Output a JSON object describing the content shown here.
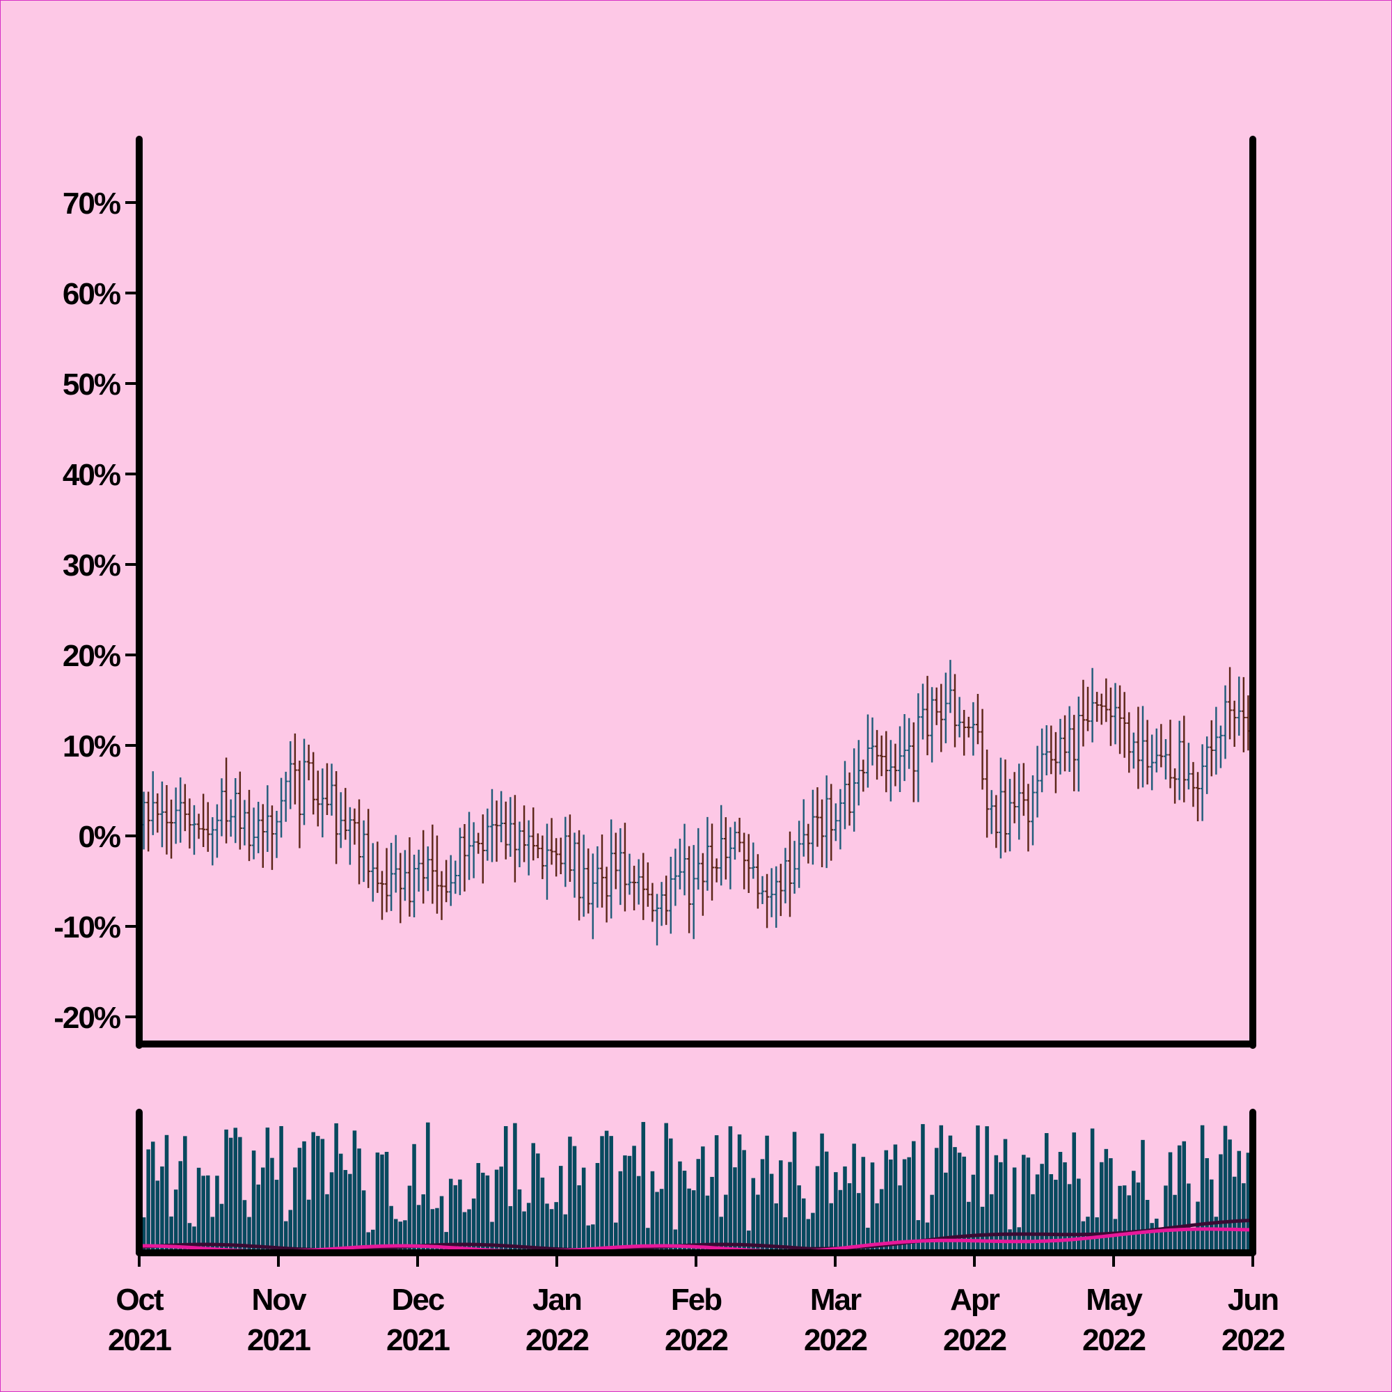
{
  "colors": {
    "background": "#fdc8e6",
    "up": "#1e5a78",
    "down": "#5a2416",
    "volume": "#07495e",
    "ma_short": "#3b0a33",
    "ma_long": "#e8189a",
    "axis": "#000000"
  },
  "chart_data": {
    "type": "ohlc",
    "price_axis": {
      "ylim": [
        -23,
        77
      ],
      "ticks": [
        -20,
        -10,
        0,
        10,
        20,
        30,
        40,
        50,
        60,
        70
      ],
      "tick_labels": [
        "-20%",
        "-10%",
        "0%",
        "10%",
        "20%",
        "30%",
        "40%",
        "50%",
        "60%",
        "70%"
      ]
    },
    "date_axis": {
      "start": "2021-10-01",
      "end": "2022-06-01",
      "tick_labels": [
        {
          "month": "Oct",
          "year": "2021"
        },
        {
          "month": "Nov",
          "year": "2021"
        },
        {
          "month": "Dec",
          "year": "2021"
        },
        {
          "month": "Jan",
          "year": "2022"
        },
        {
          "month": "Feb",
          "year": "2022"
        },
        {
          "month": "Mar",
          "year": "2022"
        },
        {
          "month": "Apr",
          "year": "2022"
        },
        {
          "month": "May",
          "year": "2022"
        },
        {
          "month": "Jun",
          "year": "2022"
        }
      ]
    },
    "price_trend": [
      [
        "2021-10-01",
        4
      ],
      [
        "2021-10-10",
        1
      ],
      [
        "2021-10-20",
        2
      ],
      [
        "2021-10-28",
        0
      ],
      [
        "2021-11-03",
        6
      ],
      [
        "2021-11-10",
        4
      ],
      [
        "2021-11-15",
        2
      ],
      [
        "2021-11-20",
        -3
      ],
      [
        "2021-11-28",
        -5
      ],
      [
        "2021-12-05",
        -5
      ],
      [
        "2021-12-12",
        -2
      ],
      [
        "2021-12-18",
        1
      ],
      [
        "2021-12-25",
        -1
      ],
      [
        "2022-01-02",
        -2
      ],
      [
        "2022-01-08",
        -5
      ],
      [
        "2022-01-14",
        -3
      ],
      [
        "2022-01-20",
        -8
      ],
      [
        "2022-01-26",
        -6
      ],
      [
        "2022-02-01",
        -3
      ],
      [
        "2022-02-08",
        0
      ],
      [
        "2022-02-14",
        -8
      ],
      [
        "2022-02-20",
        -4
      ],
      [
        "2022-02-26",
        1
      ],
      [
        "2022-03-04",
        4
      ],
      [
        "2022-03-10",
        10
      ],
      [
        "2022-03-15",
        6
      ],
      [
        "2022-03-20",
        11
      ],
      [
        "2022-03-26",
        15
      ],
      [
        "2022-04-01",
        11
      ],
      [
        "2022-04-06",
        3
      ],
      [
        "2022-04-12",
        4
      ],
      [
        "2022-04-18",
        9
      ],
      [
        "2022-04-26",
        12
      ],
      [
        "2022-05-02",
        13
      ],
      [
        "2022-05-08",
        8
      ],
      [
        "2022-05-14",
        9
      ],
      [
        "2022-05-20",
        6
      ],
      [
        "2022-05-26",
        13
      ],
      [
        "2022-06-01",
        12
      ]
    ],
    "ohlc_range": {
      "min_low": -12,
      "max_high": 21
    },
    "volume_panel": {
      "series": [
        {
          "key": "volume",
          "type": "bar"
        },
        {
          "key": "ma_short",
          "type": "line"
        },
        {
          "key": "ma_long",
          "type": "line"
        }
      ]
    }
  }
}
